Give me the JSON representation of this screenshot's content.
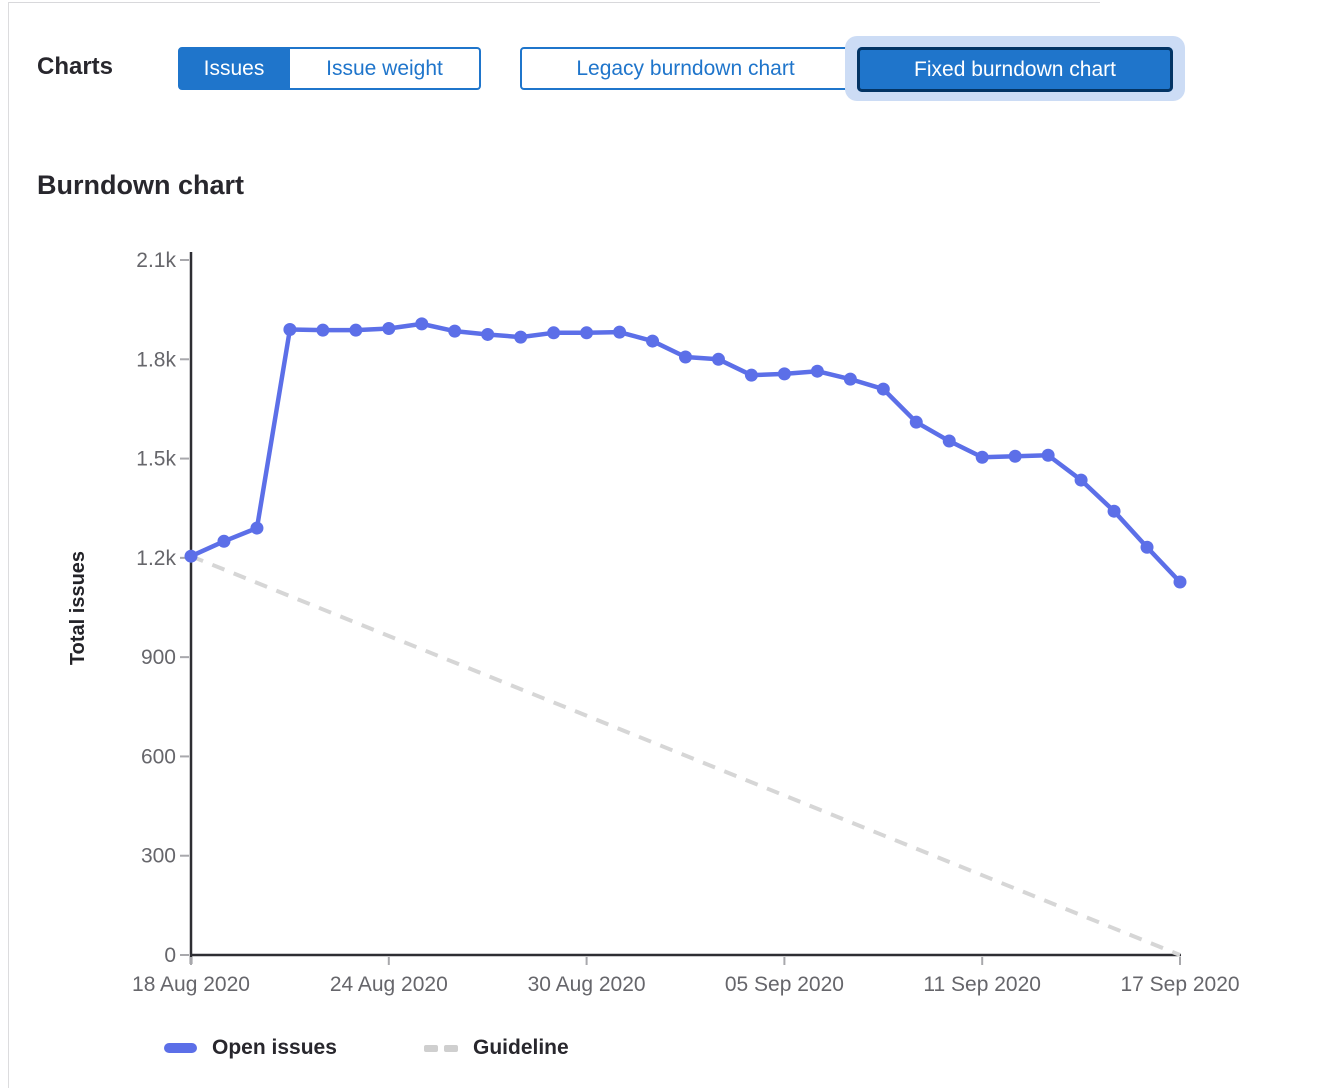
{
  "header": {
    "charts_label": "Charts",
    "type_toggle": {
      "options": [
        {
          "label": "Issues",
          "selected": true
        },
        {
          "label": "Issue weight",
          "selected": false
        }
      ]
    },
    "chart_toggle": {
      "options": [
        {
          "label": "Legacy burndown chart",
          "selected": false
        },
        {
          "label": "Fixed burndown chart",
          "selected": true,
          "focused": true
        }
      ]
    }
  },
  "section_title": "Burndown chart",
  "chart_data": {
    "type": "line",
    "title": "Burndown chart",
    "xlabel": "",
    "ylabel": "Total issues",
    "ylim": [
      0,
      2100
    ],
    "grid": false,
    "legend_position": "bottom",
    "y_ticks": [
      {
        "value": 2100,
        "label": "2.1k"
      },
      {
        "value": 1800,
        "label": "1.8k"
      },
      {
        "value": 1500,
        "label": "1.5k"
      },
      {
        "value": 1200,
        "label": "1.2k"
      },
      {
        "value": 900,
        "label": "900"
      },
      {
        "value": 600,
        "label": "600"
      },
      {
        "value": 300,
        "label": "300"
      },
      {
        "value": 0,
        "label": "0"
      }
    ],
    "x_ticks": [
      {
        "index": 0,
        "label": "18 Aug 2020"
      },
      {
        "index": 6,
        "label": "24 Aug 2020"
      },
      {
        "index": 12,
        "label": "30 Aug 2020"
      },
      {
        "index": 18,
        "label": "05 Sep 2020"
      },
      {
        "index": 24,
        "label": "11 Sep 2020"
      },
      {
        "index": 30,
        "label": "17 Sep 2020"
      }
    ],
    "x_dates": [
      "18 Aug 2020",
      "19 Aug 2020",
      "20 Aug 2020",
      "21 Aug 2020",
      "22 Aug 2020",
      "23 Aug 2020",
      "24 Aug 2020",
      "25 Aug 2020",
      "26 Aug 2020",
      "27 Aug 2020",
      "28 Aug 2020",
      "29 Aug 2020",
      "30 Aug 2020",
      "31 Aug 2020",
      "01 Sep 2020",
      "02 Sep 2020",
      "03 Sep 2020",
      "04 Sep 2020",
      "05 Sep 2020",
      "06 Sep 2020",
      "07 Sep 2020",
      "08 Sep 2020",
      "09 Sep 2020",
      "10 Sep 2020",
      "11 Sep 2020",
      "12 Sep 2020",
      "13 Sep 2020",
      "14 Sep 2020",
      "15 Sep 2020",
      "16 Sep 2020",
      "17 Sep 2020"
    ],
    "series": [
      {
        "name": "Open issues",
        "style": "solid",
        "color": "#5c6fe8",
        "values": [
          1205,
          1250,
          1290,
          1890,
          1888,
          1888,
          1893,
          1907,
          1885,
          1875,
          1867,
          1880,
          1880,
          1882,
          1855,
          1807,
          1800,
          1752,
          1756,
          1764,
          1740,
          1710,
          1610,
          1553,
          1504,
          1507,
          1510,
          1435,
          1341,
          1232,
          1127
        ]
      },
      {
        "name": "Guideline",
        "style": "dashed",
        "color": "#d6d6d6",
        "points": [
          {
            "x_index": 0,
            "value": 1205
          },
          {
            "x_index": 30,
            "value": 0
          }
        ]
      }
    ]
  },
  "legend": {
    "items": [
      {
        "label": "Open issues",
        "swatch": "solid-line",
        "color": "#5c6fe8"
      },
      {
        "label": "Guideline",
        "swatch": "dashed-line",
        "color": "#cfcfcf"
      }
    ]
  },
  "colors": {
    "accent_blue": "#1f75cb",
    "selected_border": "#033464",
    "focus_ring": "#ccdcf5",
    "line_blue": "#5c6fe8",
    "guideline_gray": "#d6d6d6",
    "axis": "#2e2e33",
    "tick_text": "#66666b"
  }
}
